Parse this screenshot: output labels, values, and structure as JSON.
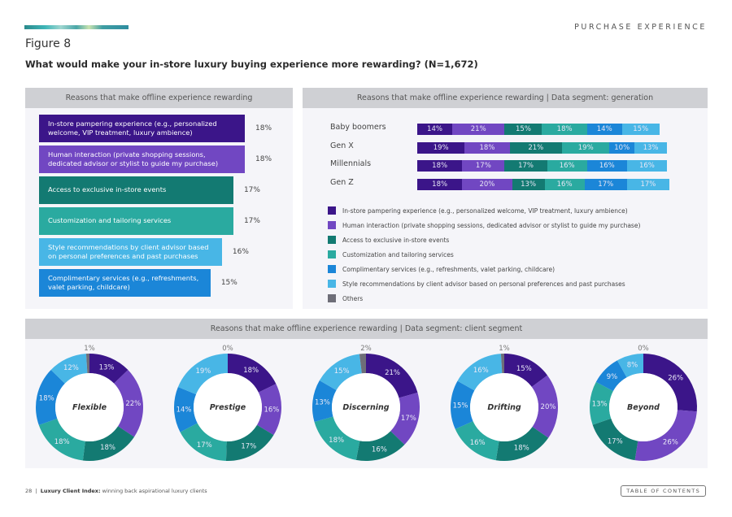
{
  "header": {
    "section": "PURCHASE EXPERIENCE",
    "figure_label": "Figure 8",
    "title": "What would make your in-store luxury buying experience more rewarding? (N=1,672)"
  },
  "colors": {
    "pampering": "#3b1589",
    "human": "#7147c2",
    "events": "#137a72",
    "customization": "#2aaaa0",
    "complimentary": "#1b86d8",
    "style": "#48b6e6",
    "others": "#6e6e78"
  },
  "footer": {
    "page": "28",
    "separator": "|",
    "doc_title": "Luxury Client Index:",
    "doc_subtitle": "winning back aspirational luxury clients",
    "toc_label": "TABLE OF CONTENTS"
  },
  "chart_data": [
    {
      "type": "bar",
      "orientation": "horizontal",
      "title": "Reasons that make offline experience rewarding",
      "categories": [
        "In-store pampering experience (e.g., personalized welcome, VIP treatment, luxury ambience)",
        "Human interaction (private shopping sessions, dedicated advisor or stylist to guide my purchase)",
        "Access to exclusive in-store events",
        "Customization and tailoring services",
        "Style recommendations by client advisor based on personal preferences and past purchases",
        "Complimentary services (e.g., refreshments, valet parking, childcare)"
      ],
      "values": [
        18,
        18,
        17,
        17,
        16,
        15
      ],
      "value_labels": [
        "18%",
        "18%",
        "17%",
        "17%",
        "16%",
        "15%"
      ],
      "color_keys": [
        "pampering",
        "human",
        "events",
        "customization",
        "style",
        "complimentary"
      ],
      "unit": "%"
    },
    {
      "type": "bar",
      "orientation": "horizontal",
      "stacked": true,
      "title": "Reasons that make offline experience rewarding | Data segment: generation",
      "categories": [
        "Baby boomers",
        "Gen X",
        "Millennials",
        "Gen Z"
      ],
      "series": [
        {
          "name": "In-store pampering experience (e.g., personalized welcome, VIP treatment, luxury ambience)",
          "color_key": "pampering",
          "values": [
            14,
            19,
            18,
            18
          ]
        },
        {
          "name": "Human interaction (private shopping sessions, dedicated advisor or stylist to guide my purchase)",
          "color_key": "human",
          "values": [
            21,
            18,
            17,
            20
          ]
        },
        {
          "name": "Access to exclusive in-store events",
          "color_key": "events",
          "values": [
            15,
            21,
            17,
            13
          ]
        },
        {
          "name": "Customization and tailoring services",
          "color_key": "customization",
          "values": [
            18,
            19,
            16,
            16
          ]
        },
        {
          "name": "Complimentary services (e.g., refreshments, valet parking, childcare)",
          "color_key": "complimentary",
          "values": [
            14,
            10,
            16,
            17
          ]
        },
        {
          "name": "Style recommendations by client advisor based on personal preferences and past purchases",
          "color_key": "style",
          "values": [
            15,
            13,
            16,
            17
          ]
        }
      ],
      "legend": {
        "placement": "bottom",
        "entries": [
          {
            "label": "In-store pampering experience (e.g., personalized welcome, VIP treatment, luxury ambience)",
            "color_key": "pampering"
          },
          {
            "label": "Human interaction (private shopping sessions, dedicated advisor or stylist to guide my purchase)",
            "color_key": "human"
          },
          {
            "label": "Access to exclusive in-store events",
            "color_key": "events"
          },
          {
            "label": "Customization and tailoring services",
            "color_key": "customization"
          },
          {
            "label": "Complimentary services (e.g., refreshments, valet parking, childcare)",
            "color_key": "complimentary"
          },
          {
            "label": "Style recommendations by client advisor based on personal preferences and past purchases",
            "color_key": "style"
          },
          {
            "label": "Others",
            "color_key": "others"
          }
        ]
      },
      "unit": "%"
    },
    {
      "type": "pie",
      "donut": true,
      "title": "Reasons that make offline experience rewarding | Data segment: client segment",
      "slice_order": [
        "pampering",
        "human",
        "events",
        "customization",
        "complimentary",
        "style",
        "others"
      ],
      "charts": [
        {
          "name": "Flexible",
          "values": [
            13,
            22,
            18,
            18,
            18,
            12,
            1
          ]
        },
        {
          "name": "Prestige",
          "values": [
            18,
            16,
            17,
            17,
            14,
            19,
            0
          ]
        },
        {
          "name": "Discerning",
          "values": [
            21,
            17,
            16,
            18,
            13,
            15,
            2
          ]
        },
        {
          "name": "Drifting",
          "values": [
            15,
            20,
            18,
            16,
            15,
            16,
            1
          ]
        },
        {
          "name": "Beyond",
          "values": [
            26,
            26,
            17,
            13,
            9,
            8,
            0
          ]
        }
      ],
      "unit": "%"
    }
  ]
}
